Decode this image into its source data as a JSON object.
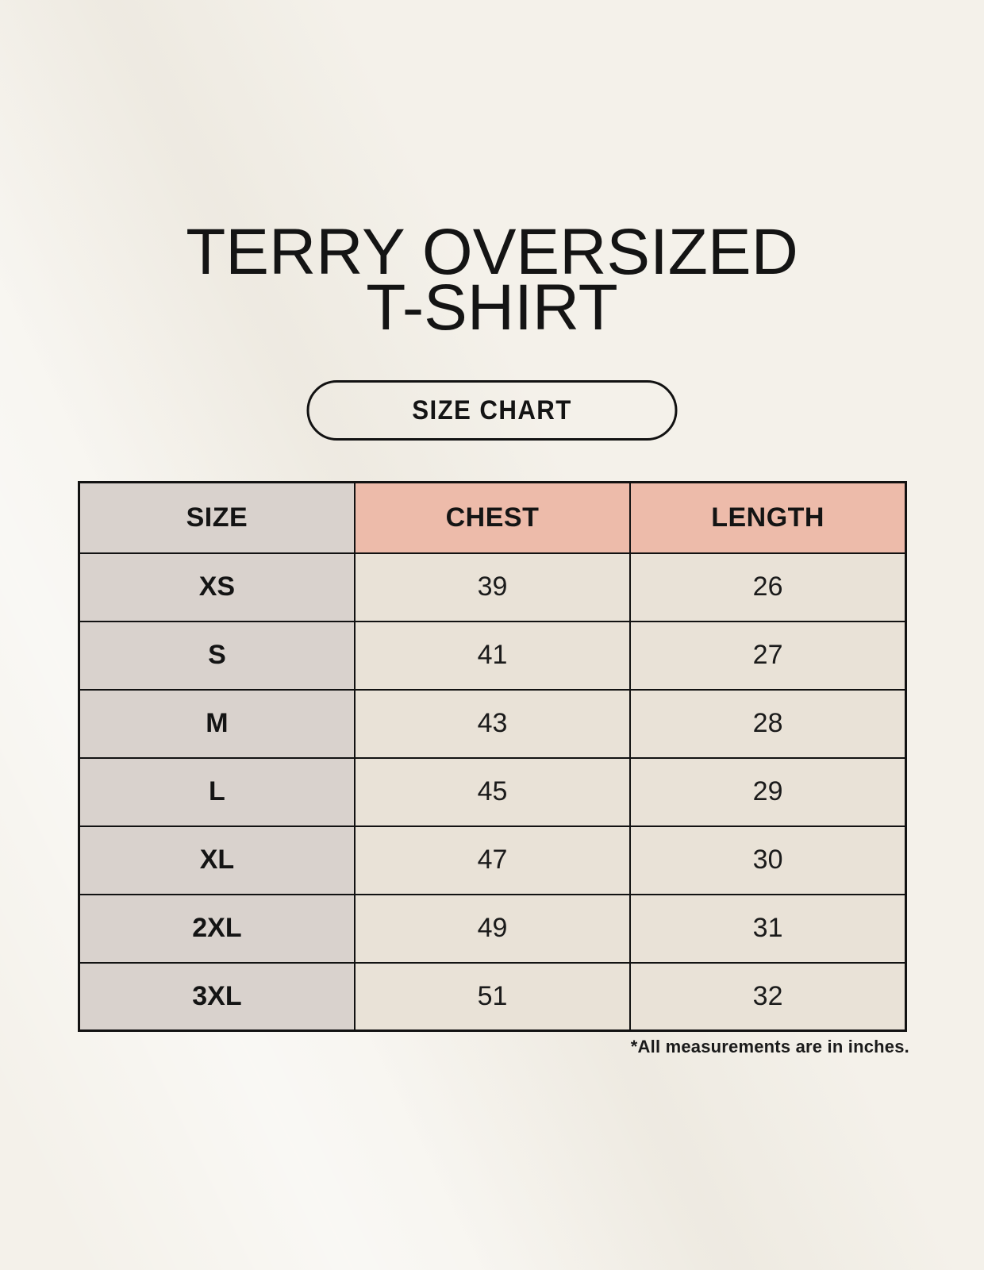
{
  "page": {
    "title_line1": "TERRY OVERSIZED",
    "title_line2": "T-SHIRT",
    "size_chart_button_label": "SIZE CHART",
    "footnote": "*All measurements are in inches."
  },
  "colors": {
    "page_background": "#f4f1ea",
    "header_accent_pink": "#edbbaa",
    "size_column_gray": "#d9d2cd",
    "value_cell_beige": "#e9e2d7",
    "table_border_black": "#121212",
    "text_black": "#141414"
  },
  "chart_data": {
    "type": "table",
    "title": "TERRY OVERSIZED T-SHIRT",
    "subtitle": "SIZE CHART",
    "columns": [
      "SIZE",
      "CHEST",
      "LENGTH"
    ],
    "units": "inches",
    "rows": [
      {
        "size": "XS",
        "chest": 39,
        "length": 26
      },
      {
        "size": "S",
        "chest": 41,
        "length": 27
      },
      {
        "size": "M",
        "chest": 43,
        "length": 28
      },
      {
        "size": "L",
        "chest": 45,
        "length": 29
      },
      {
        "size": "XL",
        "chest": 47,
        "length": 30
      },
      {
        "size": "2XL",
        "chest": 49,
        "length": 31
      },
      {
        "size": "3XL",
        "chest": 51,
        "length": 32
      }
    ],
    "note": "*All measurements are in inches."
  }
}
